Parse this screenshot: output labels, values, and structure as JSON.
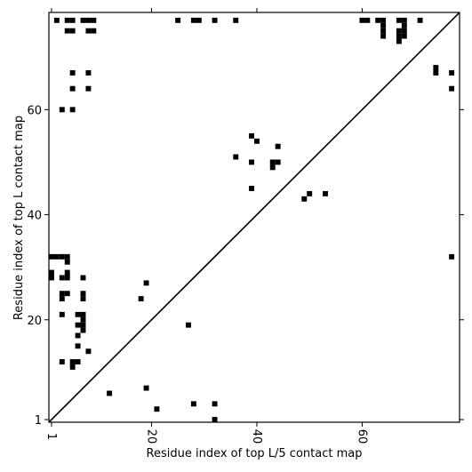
{
  "chart_data": {
    "type": "scatter",
    "xlabel": "Residue index of top L/5 contact map",
    "ylabel": "Residue index of top L contact map",
    "xlim": [
      0.5,
      78.5
    ],
    "ylim": [
      0.5,
      78.5
    ],
    "xticks": [
      1,
      20,
      40,
      60
    ],
    "yticks": [
      1,
      20,
      40,
      60
    ],
    "diagonal": true,
    "series": [
      {
        "color": "#000000",
        "x": [
          2,
          4,
          5,
          7,
          8,
          9,
          25,
          28,
          29,
          32,
          36,
          60,
          61,
          63,
          67,
          68,
          71,
          4,
          5,
          8,
          9,
          64,
          67,
          68,
          64,
          64,
          64,
          67,
          67,
          68,
          68,
          5,
          8,
          74,
          77,
          74,
          5,
          8,
          77,
          3,
          5,
          39,
          40,
          44,
          36,
          39,
          43,
          44,
          43,
          39,
          50,
          53,
          49,
          1,
          2,
          3,
          4,
          77,
          4,
          1,
          4,
          1,
          3,
          4,
          7,
          19,
          3,
          4,
          7,
          3,
          7,
          18,
          3,
          6,
          7,
          7,
          6,
          7,
          27,
          7,
          6,
          6,
          8,
          3,
          5,
          6,
          5,
          12,
          19,
          28,
          32,
          21,
          32
        ],
        "y": [
          77,
          77,
          77,
          77,
          77,
          77,
          77,
          77,
          77,
          77,
          77,
          77,
          77,
          77,
          77,
          77,
          77,
          75,
          75,
          75,
          75,
          76,
          75,
          75,
          75,
          74,
          77,
          74,
          73,
          74,
          76,
          67,
          67,
          67,
          67,
          68,
          64,
          64,
          64,
          60,
          60,
          55,
          54,
          53,
          51,
          50,
          50,
          50,
          49,
          45,
          44,
          44,
          43,
          32,
          32,
          32,
          32,
          32,
          31,
          29,
          29,
          28,
          28,
          28,
          28,
          27,
          25,
          25,
          25,
          24,
          24,
          24,
          21,
          21,
          21,
          20,
          19,
          19,
          19,
          18,
          17,
          15,
          14,
          12,
          12,
          12,
          11,
          6,
          7,
          4,
          4,
          3,
          1
        ]
      }
    ]
  }
}
